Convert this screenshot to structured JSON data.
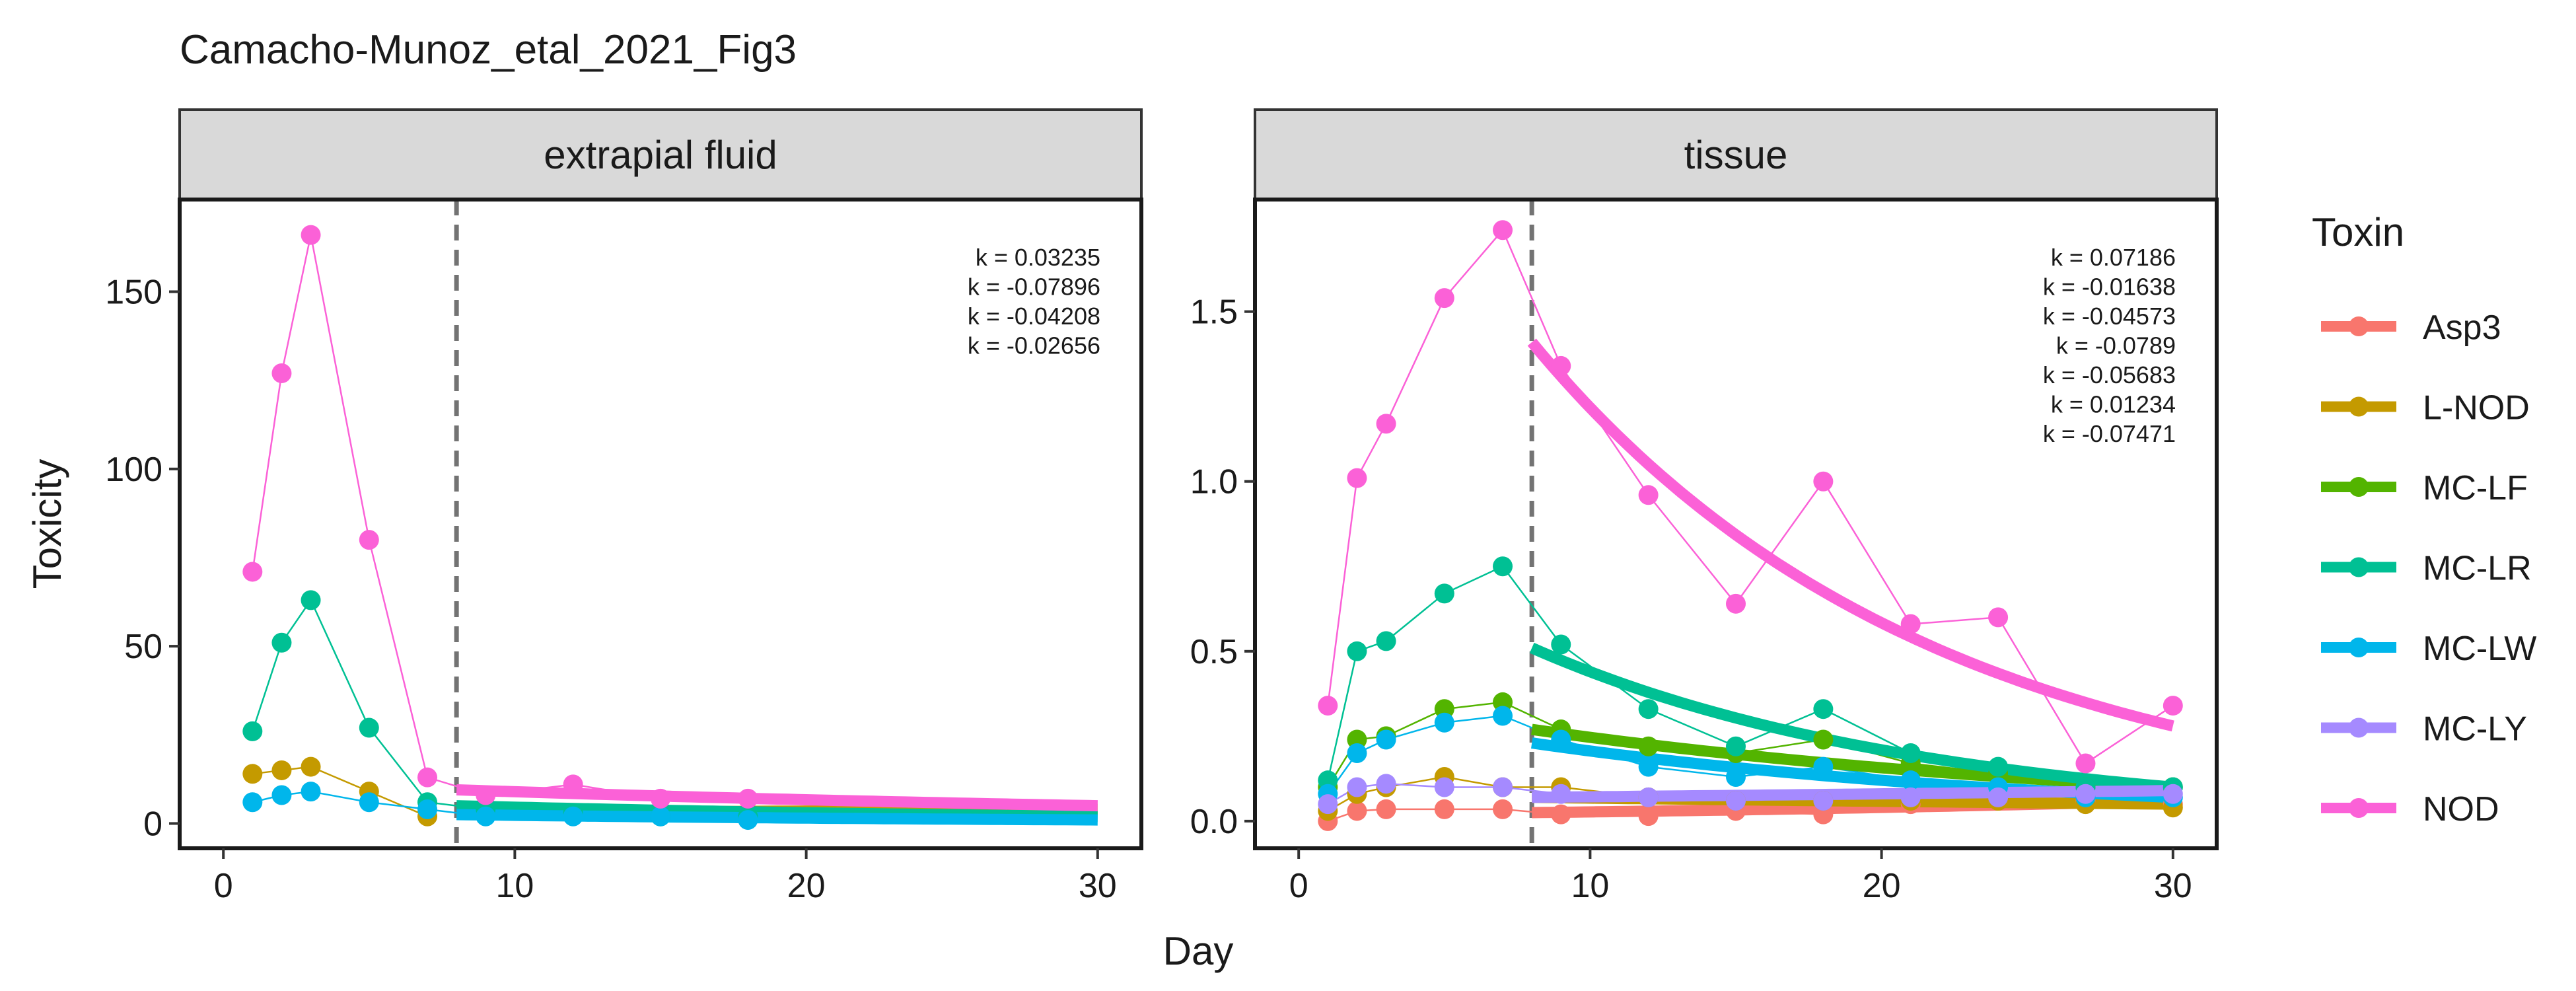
{
  "chart_data": {
    "type": "line",
    "title": "Camacho-Munoz_etal_2021_Fig3",
    "xlabel": "Day",
    "ylabel": "Toxicity",
    "legend": {
      "title": "Toxin",
      "placement": "right"
    },
    "cutoff_day": 8,
    "xlim": [
      -1.5,
      31.5
    ],
    "xticks": [
      0,
      10,
      20,
      30
    ],
    "series_order": [
      "Asp3",
      "L-NOD",
      "MC-LF",
      "MC-LR",
      "MC-LW",
      "MC-LY",
      "NOD"
    ],
    "colors": {
      "Asp3": "#F8766D",
      "L-NOD": "#C49A00",
      "MC-LF": "#53B400",
      "MC-LR": "#00C094",
      "MC-LW": "#00B6EB",
      "MC-LY": "#A58AFF",
      "NOD": "#FB61D7"
    },
    "panels": [
      {
        "strip": "extrapial fluid",
        "ylim": [
          -7,
          176
        ],
        "yticks": [
          0,
          50,
          100,
          150
        ],
        "ytick_labels": [
          "0",
          "50",
          "100",
          "150"
        ],
        "k_labels": [
          {
            "toxin": "L-NOD",
            "text": "k = 0.03235"
          },
          {
            "toxin": "MC-LR",
            "text": "k = -0.07896"
          },
          {
            "toxin": "MC-LW",
            "text": "k = -0.04208"
          },
          {
            "toxin": "NOD",
            "text": "k = -0.02656"
          }
        ],
        "series": [
          {
            "name": "L-NOD",
            "x": [
              1,
              2,
              3,
              5,
              7
            ],
            "y": [
              14,
              15,
              16,
              9,
              2
            ]
          },
          {
            "name": "MC-LR",
            "x": [
              1,
              2,
              3,
              5,
              7,
              9,
              12,
              15,
              18
            ],
            "y": [
              26,
              51,
              63,
              27,
              6,
              4,
              3,
              2,
              2
            ]
          },
          {
            "name": "MC-LW",
            "x": [
              1,
              2,
              3,
              5,
              7,
              9,
              12,
              15,
              18
            ],
            "y": [
              6,
              8,
              9,
              6,
              4,
              2,
              2,
              2,
              1
            ]
          },
          {
            "name": "NOD",
            "x": [
              1,
              2,
              3,
              5,
              7,
              9,
              12,
              15,
              18
            ],
            "y": [
              71,
              127,
              166,
              80,
              13,
              8,
              11,
              7,
              7
            ]
          }
        ],
        "fits": [
          {
            "name": "L-NOD",
            "x": [
              8,
              30
            ],
            "y": [
              3,
              4
            ]
          },
          {
            "name": "MC-LR",
            "x": [
              8,
              30
            ],
            "y": [
              5,
              2
            ]
          },
          {
            "name": "MC-LW",
            "x": [
              8,
              30
            ],
            "y": [
              2.5,
              1
            ]
          },
          {
            "name": "NOD",
            "x": [
              8,
              30
            ],
            "y": [
              9.5,
              5
            ]
          }
        ]
      },
      {
        "strip": "tissue",
        "ylim": [
          -0.08,
          1.83
        ],
        "yticks": [
          0,
          0.5,
          1,
          1.5
        ],
        "ytick_labels": [
          "0.0",
          "0.5",
          "1.0",
          "1.5"
        ],
        "k_labels": [
          {
            "toxin": "Asp3",
            "text": "k = 0.07186"
          },
          {
            "toxin": "L-NOD",
            "text": "k = -0.01638"
          },
          {
            "toxin": "MC-LF",
            "text": "k = -0.04573"
          },
          {
            "toxin": "MC-LR",
            "text": "k = -0.0789"
          },
          {
            "toxin": "MC-LW",
            "text": "k = -0.05683"
          },
          {
            "toxin": "MC-LY",
            "text": "k = 0.01234"
          },
          {
            "toxin": "NOD",
            "text": "k = -0.07471"
          }
        ],
        "series": [
          {
            "name": "Asp3",
            "x": [
              1,
              2,
              3,
              5,
              7,
              9,
              12,
              15,
              18,
              21,
              24,
              27,
              30
            ],
            "y": [
              0.0,
              0.03,
              0.035,
              0.035,
              0.035,
              0.02,
              0.015,
              0.03,
              0.02,
              0.05,
              0.06,
              0.06,
              0.05
            ]
          },
          {
            "name": "L-NOD",
            "x": [
              1,
              2,
              3,
              5,
              7,
              9,
              12,
              15,
              18,
              21,
              24,
              27,
              30
            ],
            "y": [
              0.03,
              0.08,
              0.1,
              0.13,
              0.1,
              0.1,
              0.07,
              0.06,
              0.06,
              0.06,
              0.06,
              0.05,
              0.04
            ]
          },
          {
            "name": "MC-LF",
            "x": [
              1,
              2,
              3,
              5,
              7,
              9,
              12,
              15,
              18,
              21,
              24,
              27,
              30
            ],
            "y": [
              0.1,
              0.24,
              0.25,
              0.33,
              0.35,
              0.27,
              0.22,
              0.2,
              0.24,
              0.17,
              0.14,
              0.1,
              0.1
            ]
          },
          {
            "name": "MC-LR",
            "x": [
              1,
              2,
              3,
              5,
              7,
              9,
              12,
              15,
              18,
              21,
              24,
              27,
              30
            ],
            "y": [
              0.12,
              0.5,
              0.53,
              0.67,
              0.75,
              0.52,
              0.33,
              0.22,
              0.33,
              0.2,
              0.16,
              0.1,
              0.1
            ]
          },
          {
            "name": "MC-LW",
            "x": [
              1,
              2,
              3,
              5,
              7,
              9,
              12,
              15,
              18,
              21,
              24,
              27,
              30
            ],
            "y": [
              0.08,
              0.2,
              0.24,
              0.29,
              0.31,
              0.24,
              0.16,
              0.13,
              0.16,
              0.12,
              0.1,
              0.07,
              0.07
            ]
          },
          {
            "name": "MC-LY",
            "x": [
              1,
              2,
              3,
              5,
              7,
              9,
              12,
              15,
              18,
              21,
              24,
              27,
              30
            ],
            "y": [
              0.05,
              0.1,
              0.11,
              0.1,
              0.1,
              0.08,
              0.07,
              0.06,
              0.06,
              0.07,
              0.07,
              0.08,
              0.08
            ]
          },
          {
            "name": "NOD",
            "x": [
              1,
              2,
              3,
              5,
              7,
              9,
              12,
              15,
              18,
              21,
              24,
              27,
              30
            ],
            "y": [
              0.34,
              1.01,
              1.17,
              1.54,
              1.74,
              1.34,
              0.96,
              0.64,
              1.0,
              0.58,
              0.6,
              0.17,
              0.34
            ]
          }
        ],
        "fits": [
          {
            "name": "Asp3",
            "x": [
              8,
              30
            ],
            "y": [
              0.025,
              0.06
            ]
          },
          {
            "name": "L-NOD",
            "x": [
              8,
              30
            ],
            "y": [
              0.07,
              0.05
            ]
          },
          {
            "name": "MC-LF",
            "x": [
              8,
              30
            ],
            "y": [
              0.27,
              0.1
            ]
          },
          {
            "name": "MC-LR",
            "x": [
              8,
              30
            ],
            "y": [
              0.51,
              0.1
            ]
          },
          {
            "name": "MC-LW",
            "x": [
              8,
              30
            ],
            "y": [
              0.23,
              0.07
            ]
          },
          {
            "name": "MC-LY",
            "x": [
              8,
              30
            ],
            "y": [
              0.07,
              0.09
            ]
          },
          {
            "name": "NOD",
            "x": [
              8,
              30
            ],
            "y": [
              1.41,
              0.28
            ]
          }
        ]
      }
    ]
  }
}
